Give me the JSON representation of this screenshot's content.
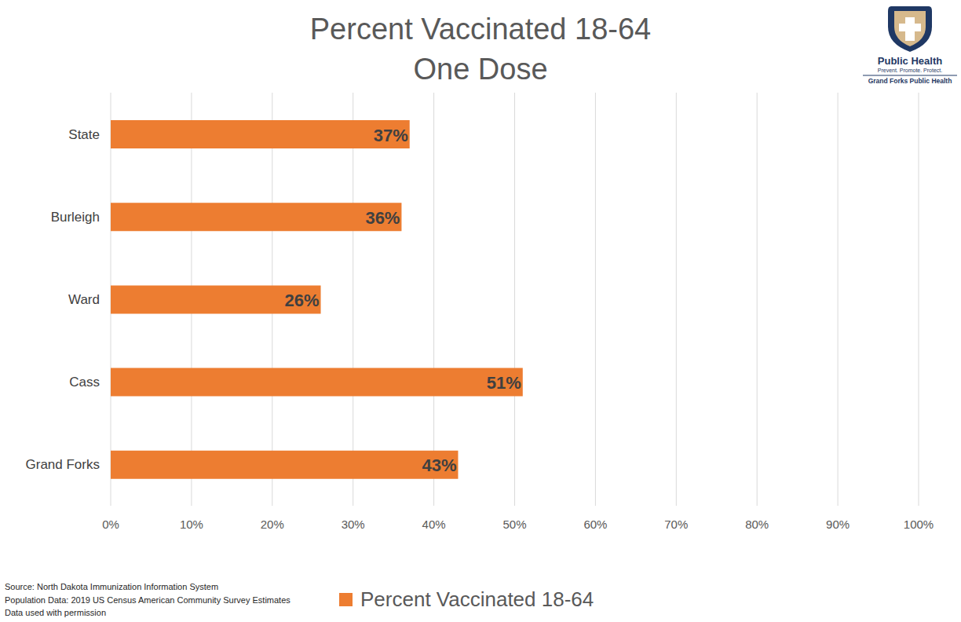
{
  "chart_data": {
    "type": "bar",
    "title": "Percent Vaccinated 18-64",
    "subtitle": "One Dose",
    "orientation": "horizontal",
    "categories": [
      "State",
      "Burleigh",
      "Ward",
      "Cass",
      "Grand Forks"
    ],
    "series": [
      {
        "name": "Percent Vaccinated 18-64",
        "color": "#ed7d31",
        "values": [
          37,
          36,
          26,
          51,
          43
        ],
        "value_labels": [
          "37%",
          "36%",
          "26%",
          "51%",
          "43%"
        ]
      }
    ],
    "data_labels": true,
    "xlim": [
      0,
      100
    ],
    "xticks": [
      {
        "value": 0,
        "label": "0%"
      },
      {
        "value": 10,
        "label": "10%"
      },
      {
        "value": 20,
        "label": "20%"
      },
      {
        "value": 30,
        "label": "30%"
      },
      {
        "value": 40,
        "label": "40%"
      },
      {
        "value": 50,
        "label": "50%"
      },
      {
        "value": 60,
        "label": "60%"
      },
      {
        "value": 70,
        "label": "70%"
      },
      {
        "value": 80,
        "label": "80%"
      },
      {
        "value": 90,
        "label": "90%"
      },
      {
        "value": 100,
        "label": "100%"
      }
    ],
    "grid": true,
    "legend": "bottom",
    "annotations": [
      "Source: North Dakota Immunization Information System",
      "Population Data: 2019 US Census American Community Survey Estimates",
      "Data used with permission"
    ],
    "logo": [
      "Public Health",
      "Prevent. Promote. Protect.",
      "Grand Forks Public Health"
    ]
  }
}
